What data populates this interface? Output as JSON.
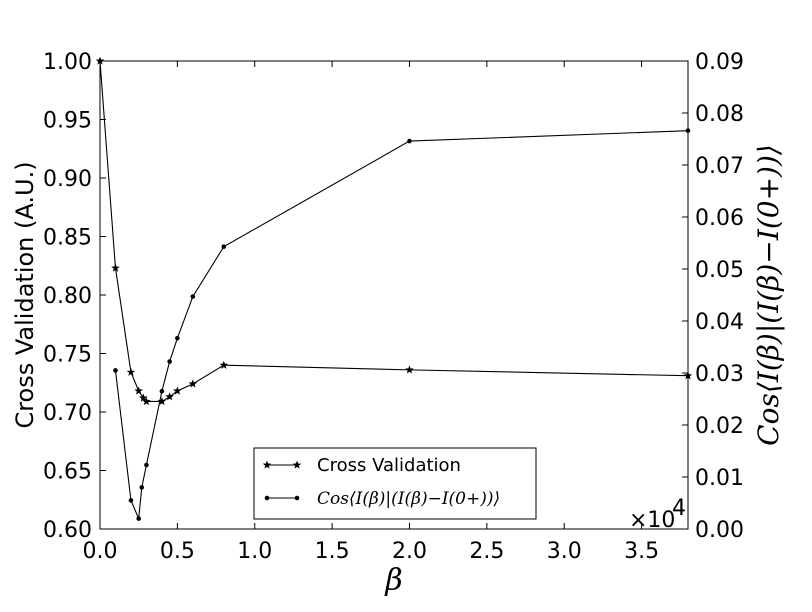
{
  "chart_data": {
    "type": "line",
    "title": "",
    "xlabel": "β",
    "ylabel": "Cross Validation (A.U.)",
    "ylabel_right": "Cos⟨I(β)|(I(β)−I(0+))⟩",
    "x_multiplier_label": "×10",
    "x_multiplier_exponent": "4",
    "xlim": [
      0,
      3.8
    ],
    "ylim": [
      0.6,
      1.0
    ],
    "ylim_right": [
      0.0,
      0.09
    ],
    "x_ticks": [
      "0.0",
      "0.5",
      "1.0",
      "1.5",
      "2.0",
      "2.5",
      "3.0",
      "3.5"
    ],
    "y_ticks": [
      "0.60",
      "0.65",
      "0.70",
      "0.75",
      "0.80",
      "0.85",
      "0.90",
      "0.95",
      "1.00"
    ],
    "y_ticks_right": [
      "0.00",
      "0.01",
      "0.02",
      "0.03",
      "0.04",
      "0.05",
      "0.06",
      "0.07",
      "0.08",
      "0.09"
    ],
    "legend_position": "lower-center",
    "grid": false,
    "series": [
      {
        "name": "Cross Validation",
        "axis": "left",
        "marker": "star",
        "x": [
          0.0,
          0.1,
          0.2,
          0.25,
          0.28,
          0.3,
          0.4,
          0.45,
          0.5,
          0.6,
          0.8,
          2.0,
          3.8
        ],
        "y": [
          1.0,
          0.823,
          0.734,
          0.718,
          0.712,
          0.709,
          0.709,
          0.713,
          0.718,
          0.724,
          0.74,
          0.736,
          0.731
        ]
      },
      {
        "name": "Cos⟨I(β)|(I(β)−I(0+))⟩",
        "axis": "right",
        "marker": "dot",
        "x": [
          0.1,
          0.2,
          0.25,
          0.27,
          0.3,
          0.4,
          0.45,
          0.5,
          0.6,
          0.8,
          2.0,
          3.8
        ],
        "y": [
          0.0305,
          0.0055,
          0.002,
          0.008,
          0.0123,
          0.0265,
          0.0322,
          0.0367,
          0.0447,
          0.0543,
          0.0746,
          0.0766
        ]
      }
    ]
  }
}
